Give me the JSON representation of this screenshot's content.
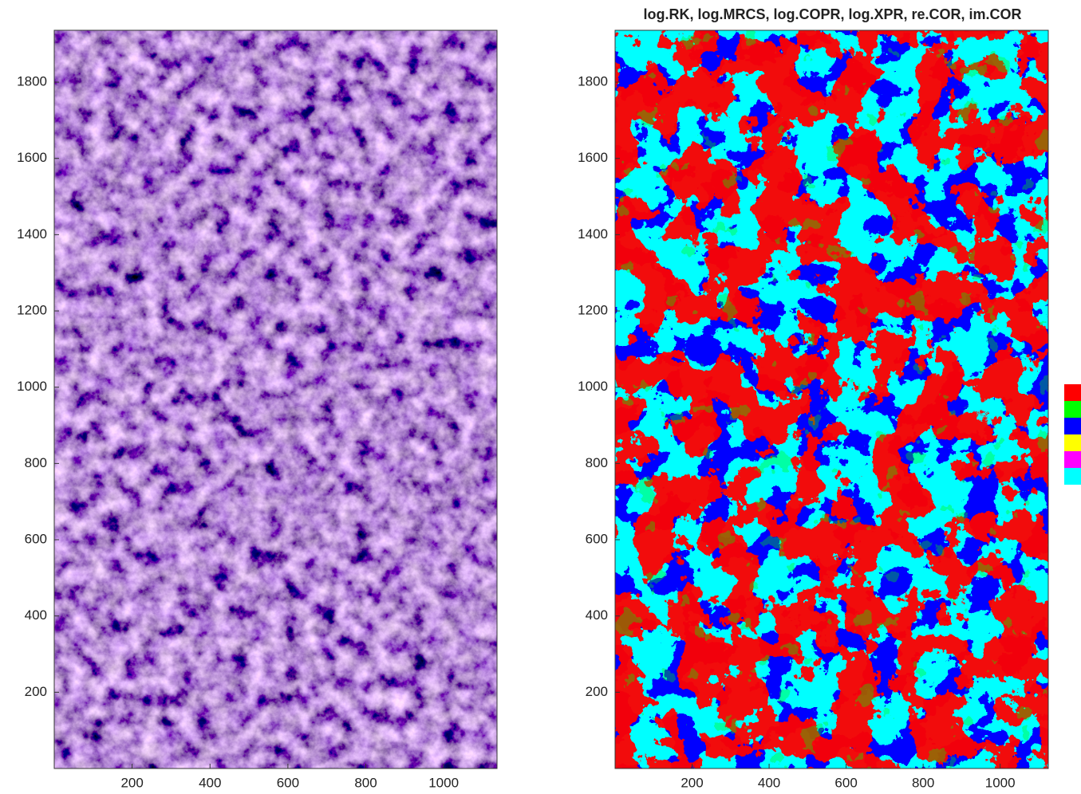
{
  "chart_data": [
    {
      "type": "image",
      "xlim": [
        0,
        1137
      ],
      "ylim": [
        0,
        1936
      ],
      "xticks": [
        200,
        400,
        600,
        800,
        1000
      ],
      "yticks": [
        200,
        400,
        600,
        800,
        1000,
        1200,
        1400,
        1600,
        1800
      ]
    },
    {
      "type": "image",
      "title": "log.RK, log.MRCS, log.COPR, log.XPR, re.COR, im.COR",
      "xlim": [
        0,
        1125
      ],
      "ylim": [
        0,
        1936
      ],
      "xticks": [
        200,
        400,
        600,
        800,
        1000
      ],
      "yticks": [
        200,
        400,
        600,
        800,
        1000,
        1200,
        1400,
        1600,
        1800
      ],
      "colorbar": [
        "#ff0000",
        "#00ff00",
        "#0000ff",
        "#ffff00",
        "#ff00ff",
        "#00ffff"
      ]
    }
  ]
}
